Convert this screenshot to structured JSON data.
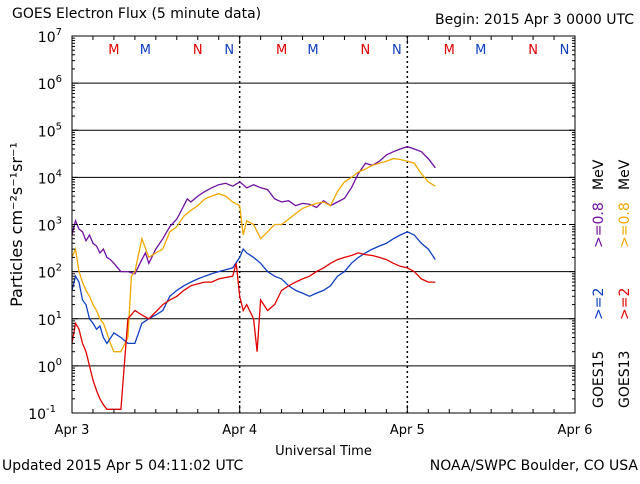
{
  "header": {
    "title": "GOES Electron Flux (5 minute data)",
    "begin": "Begin: 2015 Apr 3 0000 UTC"
  },
  "footer": {
    "updated": "Updated 2015 Apr  5 04:11:02 UTC",
    "source": "NOAA/SWPC Boulder, CO USA"
  },
  "chart_data": {
    "type": "line",
    "title": "GOES Electron Flux (5 minute data)",
    "xlabel": "Universal Time",
    "ylabel": "Particles cm⁻²s⁻¹sr⁻¹",
    "xlim": [
      0,
      72
    ],
    "x_unit": "hours since 2015 Apr 3 0000 UTC",
    "x_ticks": [
      {
        "x": 0,
        "label": "Apr 3"
      },
      {
        "x": 24,
        "label": "Apr 4"
      },
      {
        "x": 48,
        "label": "Apr 5"
      },
      {
        "x": 72,
        "label": "Apr 6"
      }
    ],
    "y_scale": "log",
    "ylim": [
      0.1,
      10000000
    ],
    "y_ticks": [
      {
        "v": 0.1,
        "b": "10",
        "e": "-1"
      },
      {
        "v": 1,
        "b": "10",
        "e": "0"
      },
      {
        "v": 10,
        "b": "10",
        "e": "1"
      },
      {
        "v": 100,
        "b": "10",
        "e": "2"
      },
      {
        "v": 1000,
        "b": "10",
        "e": "3"
      },
      {
        "v": 10000,
        "b": "10",
        "e": "4"
      },
      {
        "v": 100000,
        "b": "10",
        "e": "5"
      },
      {
        "v": 1000000,
        "b": "10",
        "e": "6"
      },
      {
        "v": 10000000,
        "b": "10",
        "e": "7"
      }
    ],
    "grid": "horizontal at each decade, dashed at 10^3",
    "threshold_dashed": 1000,
    "markers": [
      {
        "x": 6,
        "label": "M",
        "color": "#e00000"
      },
      {
        "x": 10.5,
        "label": "M",
        "color": "#1040c0"
      },
      {
        "x": 18,
        "label": "N",
        "color": "#e00000"
      },
      {
        "x": 22.5,
        "label": "N",
        "color": "#1040c0"
      },
      {
        "x": 30,
        "label": "M",
        "color": "#e00000"
      },
      {
        "x": 34.5,
        "label": "M",
        "color": "#1040c0"
      },
      {
        "x": 42,
        "label": "N",
        "color": "#e00000"
      },
      {
        "x": 46.5,
        "label": "N",
        "color": "#1040c0"
      },
      {
        "x": 54,
        "label": "M",
        "color": "#e00000"
      },
      {
        "x": 58.5,
        "label": "M",
        "color": "#1040c0"
      },
      {
        "x": 66,
        "label": "N",
        "color": "#e00000"
      },
      {
        "x": 70.5,
        "label": "N",
        "color": "#1040c0"
      }
    ],
    "legend": [
      {
        "sat": "GOES15",
        "label": ">=2",
        "energy_color": "#1040c0",
        "series": "blue"
      },
      {
        "sat": "GOES15",
        "label": ">=0.8",
        "energy_color": "#7010a0",
        "series": "purple"
      },
      {
        "sat": "GOES13",
        "label": ">=2",
        "energy_color": "#e00000",
        "series": "red"
      },
      {
        "sat": "GOES13",
        "label": ">=0.8",
        "energy_color": "#f0a800",
        "series": "orange"
      }
    ],
    "legend_unit": "MeV",
    "legend_sats": [
      "GOES15",
      "GOES13"
    ],
    "series": [
      {
        "id": "purple",
        "color": "#7010a0",
        "points": [
          [
            0,
            600
          ],
          [
            0.5,
            1200
          ],
          [
            1,
            800
          ],
          [
            1.5,
            700
          ],
          [
            2,
            450
          ],
          [
            2.5,
            600
          ],
          [
            3,
            400
          ],
          [
            3.5,
            350
          ],
          [
            4,
            250
          ],
          [
            4.5,
            300
          ],
          [
            5,
            200
          ],
          [
            5.5,
            180
          ],
          [
            6,
            150
          ],
          [
            7,
            100
          ],
          [
            8,
            100
          ],
          [
            9,
            90
          ],
          [
            10,
            180
          ],
          [
            10.5,
            250
          ],
          [
            11,
            150
          ],
          [
            12,
            300
          ],
          [
            13,
            500
          ],
          [
            14,
            900
          ],
          [
            15,
            1300
          ],
          [
            15.5,
            1800
          ],
          [
            16,
            2500
          ],
          [
            16.5,
            3500
          ],
          [
            17,
            3000
          ],
          [
            18,
            4000
          ],
          [
            19,
            5000
          ],
          [
            20,
            6000
          ],
          [
            21,
            7000
          ],
          [
            22,
            7500
          ],
          [
            23,
            6500
          ],
          [
            24,
            8000
          ],
          [
            24.5,
            7000
          ],
          [
            25,
            6000
          ],
          [
            26,
            7000
          ],
          [
            27,
            6000
          ],
          [
            28,
            5500
          ],
          [
            29,
            3500
          ],
          [
            30,
            3000
          ],
          [
            31,
            3200
          ],
          [
            32,
            2500
          ],
          [
            33,
            2800
          ],
          [
            34,
            2700
          ],
          [
            35,
            2300
          ],
          [
            36,
            3200
          ],
          [
            37,
            2500
          ],
          [
            38,
            3000
          ],
          [
            39,
            3600
          ],
          [
            40,
            6000
          ],
          [
            41,
            12000
          ],
          [
            42,
            20000
          ],
          [
            43,
            18000
          ],
          [
            44,
            22000
          ],
          [
            45,
            30000
          ],
          [
            46,
            35000
          ],
          [
            47,
            40000
          ],
          [
            48,
            45000
          ],
          [
            49,
            40000
          ],
          [
            50,
            35000
          ],
          [
            51,
            25000
          ],
          [
            52,
            16000
          ]
        ]
      },
      {
        "id": "orange",
        "color": "#f0a800",
        "points": [
          [
            0,
            200
          ],
          [
            0.5,
            300
          ],
          [
            1,
            100
          ],
          [
            1.5,
            60
          ],
          [
            2,
            40
          ],
          [
            2.5,
            30
          ],
          [
            3,
            20
          ],
          [
            3.5,
            15
          ],
          [
            4,
            10
          ],
          [
            4.5,
            8
          ],
          [
            5,
            5
          ],
          [
            5.5,
            3
          ],
          [
            6,
            2
          ],
          [
            7,
            2
          ],
          [
            8,
            4
          ],
          [
            8.5,
            80
          ],
          [
            9,
            100
          ],
          [
            10,
            500
          ],
          [
            11,
            200
          ],
          [
            12,
            250
          ],
          [
            13,
            300
          ],
          [
            14,
            700
          ],
          [
            15,
            900
          ],
          [
            16,
            1500
          ],
          [
            17,
            2000
          ],
          [
            18,
            2500
          ],
          [
            19,
            3500
          ],
          [
            20,
            4000
          ],
          [
            21,
            4500
          ],
          [
            22,
            4000
          ],
          [
            23,
            3000
          ],
          [
            24,
            2500
          ],
          [
            24.5,
            600
          ],
          [
            25,
            1200
          ],
          [
            26,
            1000
          ],
          [
            27,
            500
          ],
          [
            28,
            700
          ],
          [
            29,
            1000
          ],
          [
            30,
            1000
          ],
          [
            31,
            1300
          ],
          [
            32,
            1700
          ],
          [
            33,
            2200
          ],
          [
            34,
            2500
          ],
          [
            35,
            2800
          ],
          [
            36,
            3000
          ],
          [
            37,
            2500
          ],
          [
            38,
            5000
          ],
          [
            39,
            8000
          ],
          [
            40,
            10000
          ],
          [
            41,
            13000
          ],
          [
            42,
            15000
          ],
          [
            43,
            18000
          ],
          [
            44,
            20000
          ],
          [
            45,
            22000
          ],
          [
            46,
            25000
          ],
          [
            47,
            24000
          ],
          [
            48,
            22000
          ],
          [
            49,
            20000
          ],
          [
            50,
            12000
          ],
          [
            51,
            8000
          ],
          [
            52,
            6500
          ]
        ]
      },
      {
        "id": "blue",
        "color": "#1040c0",
        "points": [
          [
            0,
            40
          ],
          [
            0.5,
            80
          ],
          [
            1,
            60
          ],
          [
            1.5,
            25
          ],
          [
            2,
            20
          ],
          [
            2.5,
            10
          ],
          [
            3,
            8
          ],
          [
            3.5,
            6
          ],
          [
            4,
            7
          ],
          [
            4.5,
            4
          ],
          [
            5,
            3
          ],
          [
            6,
            5
          ],
          [
            7,
            4
          ],
          [
            8,
            3
          ],
          [
            9,
            3
          ],
          [
            10,
            8
          ],
          [
            11,
            10
          ],
          [
            12,
            12
          ],
          [
            13,
            15
          ],
          [
            14,
            30
          ],
          [
            15,
            40
          ],
          [
            16,
            50
          ],
          [
            17,
            60
          ],
          [
            18,
            70
          ],
          [
            19,
            80
          ],
          [
            20,
            90
          ],
          [
            21,
            100
          ],
          [
            22,
            110
          ],
          [
            23,
            120
          ],
          [
            24,
            200
          ],
          [
            24.5,
            300
          ],
          [
            25,
            250
          ],
          [
            26,
            200
          ],
          [
            27,
            150
          ],
          [
            28,
            100
          ],
          [
            29,
            80
          ],
          [
            30,
            70
          ],
          [
            31,
            50
          ],
          [
            32,
            40
          ],
          [
            33,
            35
          ],
          [
            34,
            30
          ],
          [
            35,
            35
          ],
          [
            36,
            40
          ],
          [
            37,
            50
          ],
          [
            38,
            80
          ],
          [
            39,
            100
          ],
          [
            40,
            150
          ],
          [
            41,
            200
          ],
          [
            42,
            250
          ],
          [
            43,
            300
          ],
          [
            44,
            350
          ],
          [
            45,
            400
          ],
          [
            46,
            500
          ],
          [
            47,
            600
          ],
          [
            48,
            700
          ],
          [
            49,
            600
          ],
          [
            50,
            400
          ],
          [
            51,
            300
          ],
          [
            52,
            180
          ]
        ]
      },
      {
        "id": "red",
        "color": "#e00000",
        "points": [
          [
            0,
            3
          ],
          [
            0.5,
            8
          ],
          [
            1,
            6
          ],
          [
            1.5,
            3
          ],
          [
            2,
            2
          ],
          [
            2.5,
            1
          ],
          [
            3,
            0.5
          ],
          [
            3.5,
            0.3
          ],
          [
            4,
            0.2
          ],
          [
            4.5,
            0.15
          ],
          [
            5,
            0.12
          ],
          [
            6,
            0.12
          ],
          [
            7,
            0.12
          ],
          [
            8,
            10
          ],
          [
            9,
            15
          ],
          [
            10,
            12
          ],
          [
            11,
            10
          ],
          [
            12,
            14
          ],
          [
            13,
            20
          ],
          [
            14,
            25
          ],
          [
            15,
            30
          ],
          [
            16,
            40
          ],
          [
            17,
            50
          ],
          [
            18,
            55
          ],
          [
            19,
            60
          ],
          [
            20,
            60
          ],
          [
            21,
            70
          ],
          [
            22,
            75
          ],
          [
            23,
            80
          ],
          [
            23.5,
            150
          ],
          [
            24,
            30
          ],
          [
            24.5,
            15
          ],
          [
            25,
            20
          ],
          [
            26,
            10
          ],
          [
            26.5,
            2
          ],
          [
            27,
            25
          ],
          [
            28,
            15
          ],
          [
            29,
            20
          ],
          [
            30,
            40
          ],
          [
            31,
            50
          ],
          [
            32,
            60
          ],
          [
            33,
            70
          ],
          [
            34,
            80
          ],
          [
            35,
            100
          ],
          [
            36,
            120
          ],
          [
            37,
            150
          ],
          [
            38,
            180
          ],
          [
            39,
            200
          ],
          [
            40,
            220
          ],
          [
            41,
            250
          ],
          [
            42,
            230
          ],
          [
            43,
            220
          ],
          [
            44,
            200
          ],
          [
            45,
            180
          ],
          [
            46,
            150
          ],
          [
            47,
            130
          ],
          [
            48,
            120
          ],
          [
            49,
            100
          ],
          [
            50,
            70
          ],
          [
            51,
            60
          ],
          [
            52,
            60
          ]
        ]
      }
    ]
  }
}
